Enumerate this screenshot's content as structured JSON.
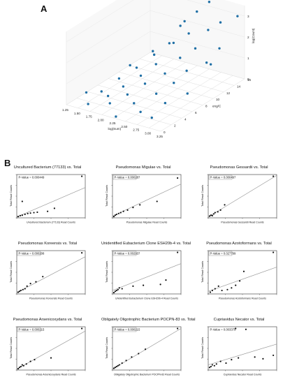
{
  "panel_labels": {
    "a": "A",
    "b": "B"
  },
  "chart_data": [
    {
      "type": "scatter3d",
      "panel": "A",
      "x_axis": {
        "label": "log(Sum)",
        "ticks": [
          "1.25",
          "1.50",
          "1.75",
          "2.00",
          "2.25",
          "2.50",
          "2.75",
          "3.00",
          "3.25"
        ]
      },
      "y_axis": {
        "label": "eng/C",
        "ticks": [
          "0",
          "2",
          "4",
          "6",
          "8",
          "10",
          "12",
          "14",
          "16"
        ]
      },
      "z_axis": {
        "label": "log(Count)",
        "ticks": [
          "0",
          "1",
          "2",
          "3"
        ]
      },
      "marker_color": "#1f6fa5",
      "points": [
        [
          1.45,
          2,
          0.4
        ],
        [
          1.55,
          4,
          0.2
        ],
        [
          1.6,
          1,
          0.1
        ],
        [
          1.7,
          6,
          0.6
        ],
        [
          1.8,
          3,
          0.3
        ],
        [
          1.85,
          8,
          0.9
        ],
        [
          1.9,
          5,
          0.5
        ],
        [
          1.95,
          2,
          0.2
        ],
        [
          2.0,
          10,
          1.3
        ],
        [
          2.05,
          7,
          0.8
        ],
        [
          2.1,
          12,
          1.6
        ],
        [
          2.1,
          4,
          0.4
        ],
        [
          2.15,
          9,
          1.1
        ],
        [
          2.2,
          14,
          2.4
        ],
        [
          2.25,
          6,
          0.7
        ],
        [
          2.3,
          11,
          1.9
        ],
        [
          2.35,
          15,
          2.8
        ],
        [
          2.35,
          3,
          0.3
        ],
        [
          2.4,
          13,
          2.1
        ],
        [
          2.45,
          8,
          1.0
        ],
        [
          2.5,
          16,
          3.2
        ],
        [
          2.55,
          10,
          1.5
        ],
        [
          2.6,
          5,
          0.6
        ],
        [
          2.65,
          12,
          1.7
        ],
        [
          2.7,
          14,
          2.3
        ],
        [
          2.75,
          7,
          0.9
        ],
        [
          2.8,
          9,
          1.2
        ],
        [
          2.85,
          15,
          2.6
        ],
        [
          2.9,
          4,
          0.5
        ],
        [
          3.0,
          11,
          1.4
        ],
        [
          3.05,
          13,
          1.8
        ],
        [
          3.1,
          16,
          2.9
        ],
        [
          3.15,
          6,
          0.8
        ],
        [
          1.75,
          12,
          1.0
        ],
        [
          2.0,
          15,
          1.9
        ],
        [
          2.6,
          2,
          0.2
        ],
        [
          2.95,
          1,
          0.3
        ],
        [
          1.6,
          9,
          0.7
        ],
        [
          2.3,
          0,
          0.1
        ],
        [
          3.2,
          10,
          1.6
        ]
      ]
    },
    {
      "type": "scatter",
      "title": "Uncultured Bacterium (77133) vs. Total",
      "pvalue": "P-Value = 0.000449",
      "ylabel": "Total Read Counts",
      "xlabel": "Uncultured Bacterium (77133) Read Counts",
      "pvalue_box": false,
      "x": [
        2,
        5,
        8,
        12,
        16,
        20,
        25,
        30,
        45,
        55,
        95,
        8
      ],
      "y": [
        3,
        5,
        6,
        8,
        10,
        11,
        12,
        13,
        15,
        22,
        96,
        38
      ],
      "fit": [
        [
          0,
          2
        ],
        [
          100,
          70
        ]
      ]
    },
    {
      "type": "scatter",
      "title": "Pseudomonas Migulae vs. Total",
      "pvalue": "P-Value = 0.000287",
      "ylabel": "Total Read Counts",
      "xlabel": "Pseudomonas Migulae Read Counts",
      "pvalue_box": true,
      "x": [
        2,
        4,
        6,
        9,
        12,
        16,
        22,
        30,
        40,
        65,
        95
      ],
      "y": [
        3,
        6,
        8,
        10,
        12,
        15,
        18,
        24,
        30,
        38,
        92
      ],
      "fit": [
        [
          0,
          4
        ],
        [
          100,
          78
        ]
      ]
    },
    {
      "type": "scatter",
      "title": "Pseudomonas Gessardii vs. Total",
      "pvalue": "P-Value = 0.000497",
      "ylabel": "Total Read Counts",
      "xlabel": "Pseudomonas Gessardii Read Counts",
      "pvalue_box": true,
      "x": [
        2,
        4,
        6,
        8,
        10,
        14,
        18,
        24,
        95
      ],
      "y": [
        4,
        6,
        5,
        9,
        12,
        14,
        18,
        30,
        96
      ],
      "fit": [
        [
          0,
          2
        ],
        [
          100,
          98
        ]
      ]
    },
    {
      "type": "scatter",
      "title": "Pseudomonas Koreensis vs. Total",
      "pvalue": "P-Value = 0.000208",
      "ylabel": "Total Read Counts",
      "xlabel": "Pseudomonas Koreensis Read Counts",
      "pvalue_box": true,
      "x": [
        2,
        4,
        6,
        9,
        12,
        15,
        20,
        28,
        38,
        95
      ],
      "y": [
        4,
        6,
        8,
        10,
        12,
        18,
        24,
        28,
        40,
        95
      ],
      "fit": [
        [
          0,
          3
        ],
        [
          100,
          86
        ]
      ]
    },
    {
      "type": "scatter",
      "title": "Unidentified Eubacterium Clone ESH20b-4 vs. Total",
      "pvalue": "P-Value = 0.002937",
      "ylabel": "Total Read Counts",
      "xlabel": "Unidentified Eubacterium Clone ESH20b-4 Read Counts",
      "pvalue_box": true,
      "x": [
        2,
        4,
        6,
        8,
        10,
        14,
        30,
        45,
        70,
        78,
        95
      ],
      "y": [
        3,
        6,
        8,
        10,
        14,
        12,
        18,
        20,
        22,
        32,
        96
      ],
      "fit": [
        [
          0,
          8
        ],
        [
          100,
          70
        ]
      ]
    },
    {
      "type": "scatter",
      "title": "Pseudomonas Azotoformans vs. Total",
      "pvalue": "P-Value = 0.027799",
      "ylabel": "Total Read Counts",
      "xlabel": "Pseudomonas Azotoformans Read Counts",
      "pvalue_box": true,
      "x": [
        3,
        6,
        10,
        15,
        20,
        28,
        34,
        40,
        46,
        52,
        95
      ],
      "y": [
        4,
        8,
        12,
        18,
        8,
        10,
        14,
        20,
        30,
        52,
        96
      ],
      "fit": [
        [
          0,
          6
        ],
        [
          100,
          62
        ]
      ]
    },
    {
      "type": "scatter",
      "title": "Pseudomonas Arsenicoxydans vs. Total",
      "pvalue": "P-Value = 0.000215",
      "ylabel": "Total Read Counts",
      "xlabel": "Pseudomonas Arsenicoxydans Read Counts",
      "pvalue_box": true,
      "x": [
        2,
        4,
        6,
        8,
        10,
        14,
        20,
        26,
        50,
        95
      ],
      "y": [
        3,
        6,
        8,
        12,
        10,
        14,
        20,
        24,
        28,
        96
      ],
      "fit": [
        [
          0,
          2
        ],
        [
          100,
          90
        ]
      ]
    },
    {
      "type": "scatter",
      "title": "Obligately Oligotrophic Bacterium POCPN-83 vs. Total",
      "pvalue": "P-Value = 0.000215",
      "ylabel": "Total Read Counts",
      "xlabel": "Obligately Oligotrophic Bacterium POCPN-83 Read Counts",
      "pvalue_box": true,
      "x": [
        2,
        4,
        6,
        8,
        10,
        14,
        20,
        28,
        38,
        48,
        95
      ],
      "y": [
        4,
        6,
        8,
        10,
        12,
        16,
        22,
        30,
        38,
        48,
        96
      ],
      "fit": [
        [
          0,
          2
        ],
        [
          100,
          96
        ]
      ]
    },
    {
      "type": "scatter",
      "title": "Cupriavidus Necator vs. Total",
      "pvalue": "P-Value = 0.003375",
      "ylabel": "Total Read Counts",
      "xlabel": "Cupriavidus Necator Read Counts",
      "pvalue_box": false,
      "x": [
        2,
        4,
        6,
        9,
        12,
        18,
        26,
        34,
        44,
        55,
        68,
        80,
        95,
        40
      ],
      "y": [
        6,
        8,
        12,
        10,
        14,
        20,
        16,
        24,
        28,
        94,
        30,
        26,
        34,
        96
      ],
      "fit": [
        [
          0,
          12
        ],
        [
          100,
          60
        ]
      ]
    }
  ]
}
